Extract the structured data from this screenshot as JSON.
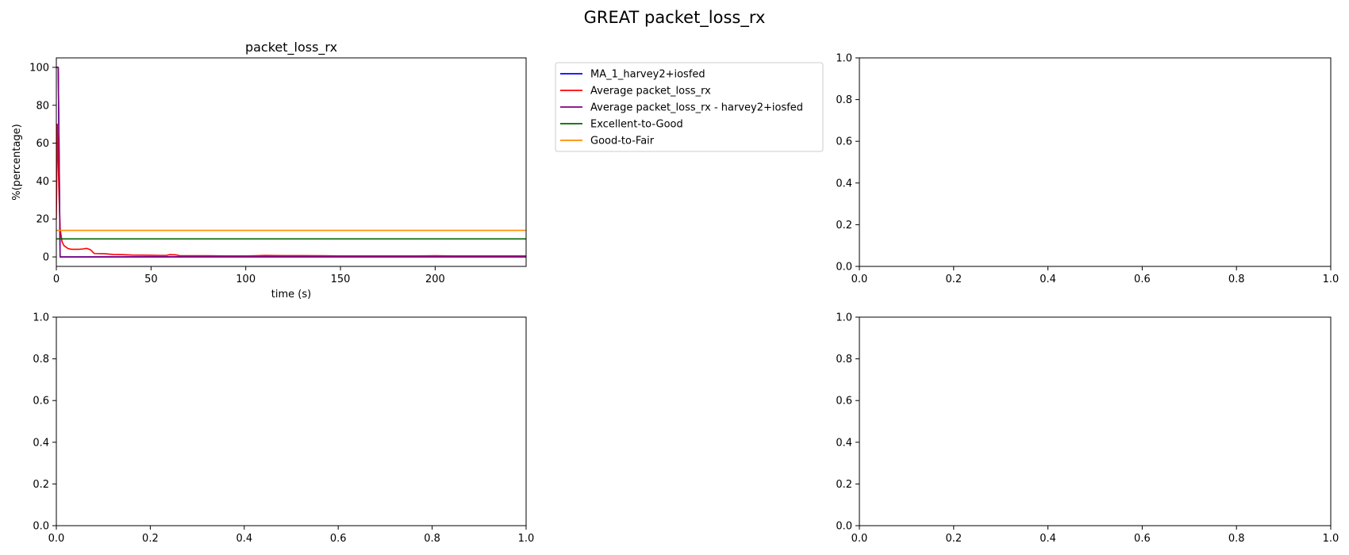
{
  "figure": {
    "suptitle": "GREAT packet_loss_rx"
  },
  "colors": {
    "ma1": "#0000ff",
    "average": "#ff0000",
    "average_harvey": "#800080",
    "excellent_to_good": "#006400",
    "good_to_fair": "#ff8c00"
  },
  "chart_data": [
    {
      "type": "line",
      "title": "packet_loss_rx",
      "xlabel": "time (s)",
      "ylabel": "%(percentage)",
      "xlim": [
        0,
        248
      ],
      "ylim": [
        -5,
        105
      ],
      "xticks": [
        0,
        50,
        100,
        150,
        200
      ],
      "xtick_labels": [
        "0",
        "50",
        "100",
        "150",
        "200"
      ],
      "yticks": [
        0,
        20,
        40,
        60,
        80,
        100
      ],
      "ytick_labels": [
        "0",
        "20",
        "40",
        "60",
        "80",
        "100"
      ],
      "legend_placement": "outside-right-top",
      "series": [
        {
          "name": "MA_1_harvey2+iosfed",
          "color": "#0000ff",
          "x": [
            0,
            1,
            2,
            3,
            248
          ],
          "y": [
            100,
            100,
            0,
            0,
            0
          ]
        },
        {
          "name": "Average packet_loss_rx",
          "color": "#ff0000",
          "x": [
            0,
            0.5,
            1,
            1.5,
            2,
            3,
            4,
            6,
            8,
            10,
            12,
            14,
            16,
            18,
            20,
            25,
            30,
            35,
            40,
            50,
            55,
            58,
            60,
            63,
            65,
            70,
            80,
            90,
            100,
            105,
            110,
            120,
            130,
            140,
            150,
            160,
            170,
            180,
            190,
            200,
            210,
            220,
            230,
            240,
            248
          ],
          "y": [
            20,
            70,
            50,
            30,
            15,
            8,
            6,
            4.5,
            4,
            4,
            4,
            4.2,
            4.5,
            3.8,
            1.8,
            1.7,
            1.3,
            1.2,
            1.0,
            0.9,
            0.8,
            0.8,
            1.2,
            1.1,
            0.7,
            0.6,
            0.6,
            0.5,
            0.5,
            0.6,
            0.8,
            0.7,
            0.7,
            0.6,
            0.5,
            0.5,
            0.5,
            0.5,
            0.5,
            0.6,
            0.5,
            0.5,
            0.5,
            0.5,
            0.5
          ]
        },
        {
          "name": "Average packet_loss_rx - harvey2+iosfed",
          "color": "#800080",
          "x": [
            0,
            1,
            2,
            3,
            50,
            100,
            150,
            200,
            248
          ],
          "y": [
            100,
            100,
            0,
            0,
            0.1,
            0.1,
            0.1,
            0.1,
            0.1
          ]
        },
        {
          "name": "Excellent-to-Good",
          "color": "#006400",
          "x": [
            0,
            248
          ],
          "y": [
            9.5,
            9.5
          ]
        },
        {
          "name": "Good-to-Fair",
          "color": "#ff8c00",
          "x": [
            0,
            248
          ],
          "y": [
            14,
            14
          ]
        }
      ]
    },
    {
      "type": "line",
      "title": "",
      "xlim": [
        0,
        1
      ],
      "ylim": [
        0,
        1
      ],
      "xticks": [
        0,
        0.2,
        0.4,
        0.6,
        0.8,
        1
      ],
      "xtick_labels": [
        "0.0",
        "0.2",
        "0.4",
        "0.6",
        "0.8",
        "1.0"
      ],
      "yticks": [
        0,
        0.2,
        0.4,
        0.6,
        0.8,
        1
      ],
      "ytick_labels": [
        "0.0",
        "0.2",
        "0.4",
        "0.6",
        "0.8",
        "1.0"
      ],
      "series": []
    },
    {
      "type": "line",
      "title": "",
      "xlim": [
        0,
        1
      ],
      "ylim": [
        0,
        1
      ],
      "xticks": [
        0,
        0.2,
        0.4,
        0.6,
        0.8,
        1
      ],
      "xtick_labels": [
        "0.0",
        "0.2",
        "0.4",
        "0.6",
        "0.8",
        "1.0"
      ],
      "yticks": [
        0,
        0.2,
        0.4,
        0.6,
        0.8,
        1
      ],
      "ytick_labels": [
        "0.0",
        "0.2",
        "0.4",
        "0.6",
        "0.8",
        "1.0"
      ],
      "series": []
    },
    {
      "type": "line",
      "title": "",
      "xlim": [
        0,
        1
      ],
      "ylim": [
        0,
        1
      ],
      "xticks": [
        0,
        0.2,
        0.4,
        0.6,
        0.8,
        1
      ],
      "xtick_labels": [
        "0.0",
        "0.2",
        "0.4",
        "0.6",
        "0.8",
        "1.0"
      ],
      "yticks": [
        0,
        0.2,
        0.4,
        0.6,
        0.8,
        1
      ],
      "ytick_labels": [
        "0.0",
        "0.2",
        "0.4",
        "0.6",
        "0.8",
        "1.0"
      ],
      "series": []
    }
  ]
}
